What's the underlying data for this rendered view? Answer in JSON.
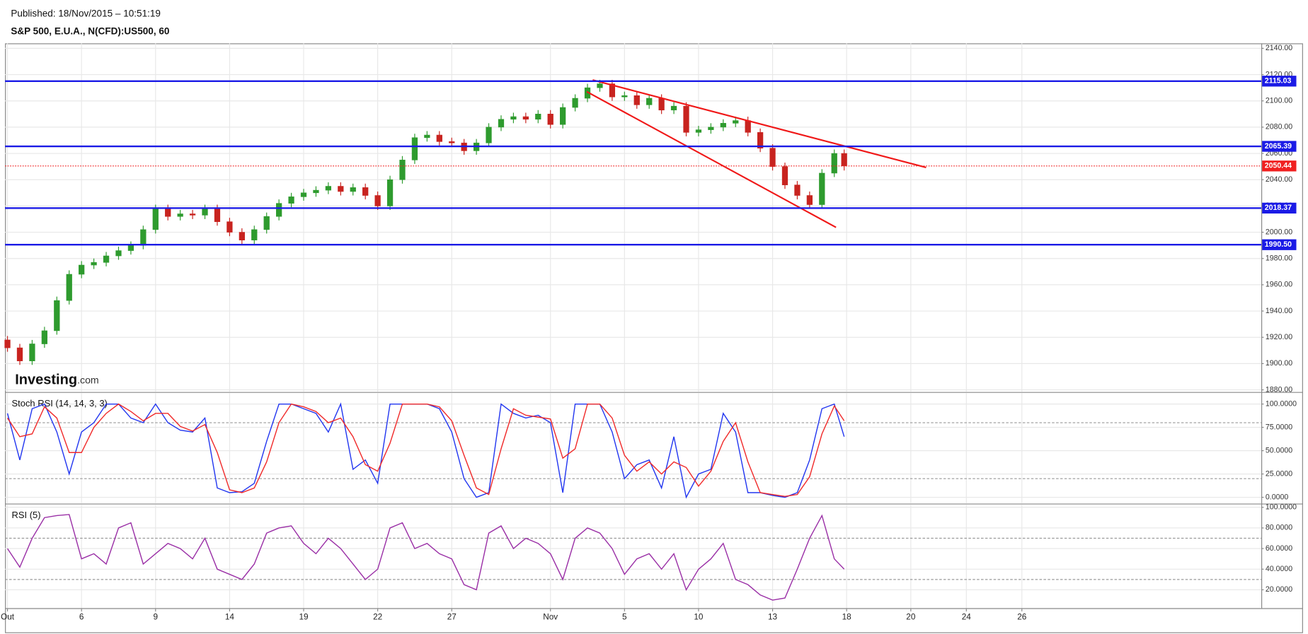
{
  "header": {
    "published": "Published: 18/Nov/2015 – 10:51:19",
    "symbol": "S&P 500, E.U.A., N(CFD):US500, 60",
    "logo": "Investing",
    "logo_suffix": ".com"
  },
  "chart_data": [
    {
      "type": "candlestick",
      "x": [
        0,
        0.5,
        1,
        1.5,
        2,
        2.5,
        3,
        3.5,
        4,
        4.5,
        5,
        5.5,
        6,
        6.5,
        7,
        7.5,
        8,
        8.5,
        9,
        9.5,
        10,
        10.5,
        11,
        11.5,
        12,
        12.5,
        13,
        13.5,
        14,
        14.5,
        15,
        15.5,
        16,
        16.5,
        17,
        17.5,
        18,
        18.5,
        19,
        19.5,
        20,
        20.5,
        21,
        21.5,
        22,
        22.5,
        23,
        23.5,
        24,
        24.5,
        25,
        25.5,
        26,
        26.5,
        27,
        27.5,
        28,
        28.5,
        29,
        29.5,
        30,
        30.5,
        31,
        31.5,
        32,
        32.5,
        33,
        33.5,
        33.9
      ],
      "open": [
        1918,
        1912,
        1902,
        1915,
        1925,
        1948,
        1968,
        1975,
        1977,
        1982,
        1986,
        1990,
        2002,
        2018,
        2012,
        2014,
        2013,
        2018,
        2008,
        2000,
        1994,
        2002,
        2012,
        2022,
        2027,
        2030,
        2032,
        2035,
        2031,
        2034,
        2028,
        2020,
        2040,
        2055,
        2072,
        2074,
        2069,
        2068,
        2062,
        2068,
        2080,
        2086,
        2088,
        2086,
        2090,
        2082,
        2095,
        2102,
        2110,
        2113,
        2103,
        2104,
        2097,
        2102,
        2093,
        2096,
        2076,
        2078,
        2080,
        2083,
        2085,
        2076,
        2064,
        2050,
        2036,
        2028,
        2021,
        2045,
        2060
      ],
      "high": [
        1921,
        1915,
        1918,
        1928,
        1951,
        1971,
        1978,
        1980,
        1985,
        1989,
        1993,
        2005,
        2021,
        2021,
        2017,
        2017,
        2021,
        2021,
        2011,
        2003,
        2005,
        2015,
        2025,
        2030,
        2033,
        2035,
        2038,
        2038,
        2037,
        2037,
        2031,
        2043,
        2058,
        2075,
        2077,
        2077,
        2072,
        2071,
        2071,
        2083,
        2089,
        2091,
        2091,
        2093,
        2093,
        2098,
        2105,
        2113,
        2116,
        2116,
        2107,
        2107,
        2105,
        2105,
        2099,
        2099,
        2081,
        2083,
        2086,
        2088,
        2088,
        2079,
        2067,
        2053,
        2039,
        2031,
        2048,
        2063,
        2063
      ],
      "low": [
        1909,
        1899,
        1899,
        1912,
        1922,
        1945,
        1965,
        1972,
        1974,
        1979,
        1983,
        1987,
        1999,
        2009,
        2009,
        2010,
        2010,
        2005,
        1997,
        1991,
        1991,
        1999,
        2009,
        2019,
        2024,
        2027,
        2029,
        2028,
        2028,
        2025,
        2017,
        2017,
        2037,
        2052,
        2069,
        2066,
        2065,
        2059,
        2059,
        2065,
        2077,
        2083,
        2083,
        2083,
        2079,
        2079,
        2092,
        2099,
        2107,
        2100,
        2100,
        2094,
        2094,
        2090,
        2090,
        2073,
        2073,
        2075,
        2077,
        2080,
        2073,
        2061,
        2047,
        2033,
        2025,
        2018,
        2018,
        2042,
        2047
      ],
      "close": [
        1912,
        1902,
        1915,
        1925,
        1948,
        1968,
        1975,
        1977,
        1982,
        1986,
        1990,
        2002,
        2018,
        2012,
        2014,
        2013,
        2018,
        2008,
        2000,
        1994,
        2002,
        2012,
        2022,
        2027,
        2030,
        2032,
        2035,
        2031,
        2034,
        2028,
        2020,
        2040,
        2055,
        2072,
        2074,
        2069,
        2068,
        2062,
        2068,
        2080,
        2086,
        2088,
        2086,
        2090,
        2082,
        2095,
        2102,
        2110,
        2113,
        2103,
        2104,
        2097,
        2102,
        2093,
        2096,
        2076,
        2078,
        2080,
        2083,
        2085,
        2076,
        2064,
        2050,
        2036,
        2028,
        2021,
        2045,
        2060,
        2050.44
      ],
      "up_color": "#2e9b2e",
      "down_color": "#c8231f",
      "xlim": [
        -0.1,
        50.8
      ],
      "xticks": [
        {
          "value": 0,
          "label": "Out"
        },
        {
          "value": 3,
          "label": "6"
        },
        {
          "value": 6,
          "label": "9"
        },
        {
          "value": 9,
          "label": "14"
        },
        {
          "value": 12,
          "label": "19"
        },
        {
          "value": 15,
          "label": "22"
        },
        {
          "value": 18,
          "label": "27"
        },
        {
          "value": 22,
          "label": "Nov"
        },
        {
          "value": 25,
          "label": "5"
        },
        {
          "value": 28,
          "label": "10"
        },
        {
          "value": 31,
          "label": "13"
        },
        {
          "value": 34,
          "label": "18"
        },
        {
          "value": 36.6,
          "label": "20"
        },
        {
          "value": 38.85,
          "label": "24"
        },
        {
          "value": 41.1,
          "label": "26"
        }
      ],
      "ylim": [
        1878.7,
        2143.8
      ],
      "yticks": [
        {
          "value": 1880,
          "label": "1880.00"
        },
        {
          "value": 1900,
          "label": "1900.00"
        },
        {
          "value": 1920,
          "label": "1920.00"
        },
        {
          "value": 1940,
          "label": "1940.00"
        },
        {
          "value": 1960,
          "label": "1960.00"
        },
        {
          "value": 1980,
          "label": "1980.00"
        },
        {
          "value": 2000,
          "label": "2000.00"
        },
        {
          "value": 2020,
          "label": "2020.00"
        },
        {
          "value": 2040,
          "label": "2040.00"
        },
        {
          "value": 2060,
          "label": "2060.00"
        },
        {
          "value": 2080,
          "label": "2080.00"
        },
        {
          "value": 2100,
          "label": "2100.00"
        },
        {
          "value": 2120,
          "label": "2120.00"
        },
        {
          "value": 2140,
          "label": "2140.00"
        }
      ],
      "grid": true,
      "levels": [
        2115.03,
        2065.39,
        2018.37,
        {
          "value": 1990.5,
          "label": "1990.50"
        }
      ],
      "level_color": "#1a1ae6",
      "last_color": "#f02020",
      "trendlines": [
        {
          "x": [
            23.71,
            37.22
          ],
          "y": [
            2115.9,
            2049.3
          ]
        },
        {
          "x": [
            23.47,
            33.57
          ],
          "y": [
            2107.0,
            2003.7
          ]
        }
      ],
      "trendline_color": "#f01818"
    },
    {
      "type": "line",
      "title": "Stoch RSI (14, 14, 3, 3)",
      "series": [
        {
          "color": "#2236f0",
          "values": [
            90,
            40,
            95,
            100,
            70,
            25,
            70,
            80,
            100,
            100,
            85,
            80,
            100,
            80,
            72,
            70,
            85,
            10,
            5,
            6,
            15,
            60,
            100,
            100,
            95,
            90,
            70,
            100,
            30,
            40,
            15,
            100,
            100,
            100,
            100,
            95,
            70,
            20,
            0,
            5,
            100,
            90,
            85,
            88,
            80,
            5,
            100,
            100,
            100,
            70,
            20,
            35,
            40,
            10,
            65,
            0,
            25,
            30,
            90,
            70,
            5,
            5,
            2,
            0,
            5,
            40,
            95,
            100,
            65
          ]
        },
        {
          "color": "#f02a2a",
          "values": [
            85,
            65,
            68,
            97,
            85,
            48,
            48,
            75,
            90,
            100,
            92,
            82,
            90,
            90,
            76,
            71,
            78,
            48,
            8,
            5,
            10,
            38,
            80,
            100,
            97,
            92,
            80,
            85,
            65,
            35,
            28,
            58,
            100,
            100,
            100,
            97,
            82,
            45,
            10,
            3,
            52,
            95,
            88,
            86,
            84,
            42,
            52,
            100,
            100,
            85,
            45,
            28,
            38,
            25,
            38,
            32,
            12,
            28,
            60,
            80,
            38,
            5,
            3,
            1,
            3,
            22,
            68,
            98,
            82
          ]
        }
      ],
      "ylim": [
        -6.3,
        111.6
      ],
      "yticks": [
        {
          "value": 0,
          "label": "0.0000"
        },
        {
          "value": 25,
          "label": "25.0000"
        },
        {
          "value": 50,
          "label": "50.0000"
        },
        {
          "value": 75,
          "label": "75.0000"
        },
        {
          "value": 100,
          "label": "100.0000"
        }
      ],
      "bands": [
        20,
        80
      ],
      "grid": true
    },
    {
      "type": "line",
      "title": "RSI (5)",
      "series": [
        {
          "color": "#9a2fa6",
          "values": [
            60,
            42,
            70,
            90,
            92,
            93,
            50,
            55,
            45,
            80,
            85,
            45,
            55,
            65,
            60,
            50,
            70,
            40,
            35,
            30,
            45,
            75,
            80,
            82,
            65,
            55,
            70,
            60,
            45,
            30,
            40,
            80,
            85,
            60,
            65,
            55,
            50,
            25,
            20,
            75,
            82,
            60,
            70,
            65,
            55,
            30,
            70,
            80,
            75,
            60,
            35,
            50,
            55,
            40,
            55,
            20,
            40,
            50,
            65,
            30,
            25,
            15,
            10,
            12,
            40,
            70,
            92,
            50,
            40
          ]
        }
      ],
      "ylim": [
        2.2,
        102.4
      ],
      "yticks": [
        {
          "value": 20,
          "label": "20.0000"
        },
        {
          "value": 40,
          "label": "40.0000"
        },
        {
          "value": 60,
          "label": "60.0000"
        },
        {
          "value": 80,
          "label": "80.0000"
        },
        {
          "value": 100,
          "label": "100.0000"
        }
      ],
      "bands": [
        30,
        70
      ],
      "grid": true
    }
  ]
}
